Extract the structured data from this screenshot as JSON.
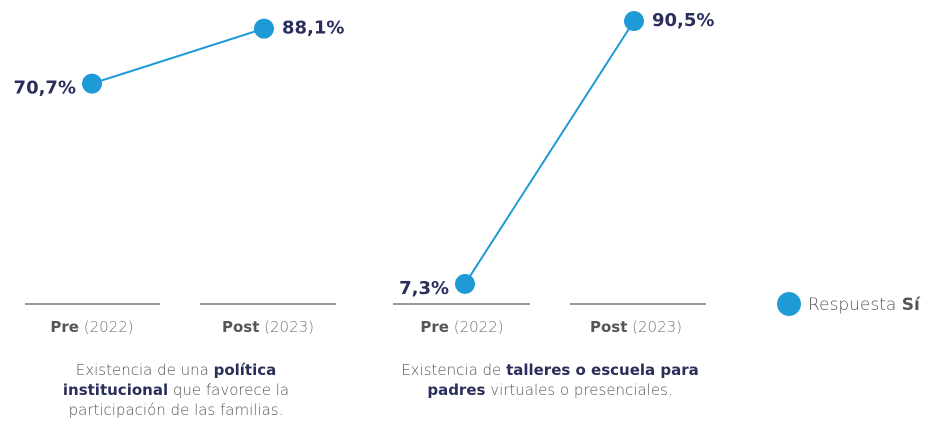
{
  "chart_data": [
    {
      "type": "line",
      "categories": [
        "Pre (2022)",
        "Post (2023)"
      ],
      "series": [
        {
          "color": "#1e9ad6",
          "values": [
            70.7,
            88.1
          ],
          "value_labels": [
            "70,7%",
            "88,1%"
          ]
        }
      ],
      "ylim": [
        0,
        100
      ],
      "caption": [
        {
          "text": "Existencia de una ",
          "bold": false
        },
        {
          "text": "política institucional",
          "bold": true
        },
        {
          "text": " que favorece la participación de las familias.",
          "bold": false
        }
      ]
    },
    {
      "type": "line",
      "categories": [
        "Pre (2022)",
        "Post (2023)"
      ],
      "series": [
        {
          "color": "#1e9ad6",
          "values": [
            7.3,
            90.5
          ],
          "value_labels": [
            "7,3%",
            "90,5%"
          ]
        }
      ],
      "ylim": [
        0,
        100
      ],
      "caption": [
        {
          "text": "Existencia de ",
          "bold": false
        },
        {
          "text": "talleres o escuela para padres",
          "bold": true
        },
        {
          "text": " virtuales o presenciales.",
          "bold": false
        }
      ]
    }
  ],
  "legend": {
    "name": "Respuesta Sí",
    "color": "#1e9ad6"
  }
}
